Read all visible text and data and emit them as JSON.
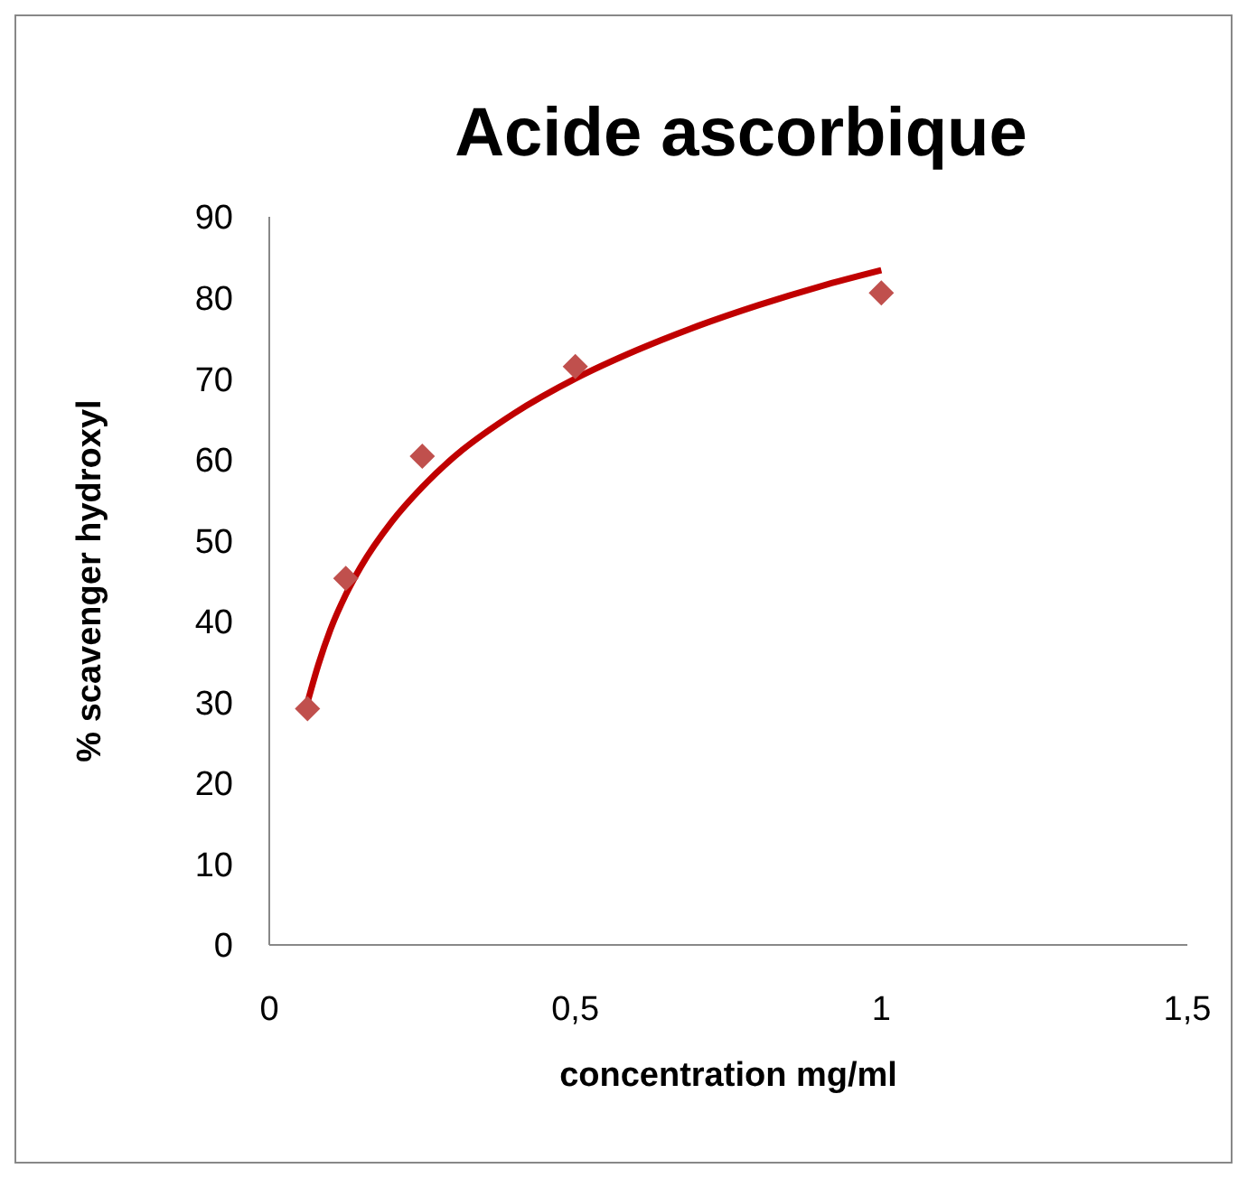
{
  "chart_data": {
    "type": "scatter",
    "title": "Acide ascorbique",
    "xlabel": "concentration mg/ml",
    "ylabel": "% scavenger hydroxyl",
    "xlim": [
      0,
      1.5
    ],
    "xticks": [
      0,
      {
        "value": 0.5,
        "label": "0,5"
      },
      1,
      {
        "value": 1.5,
        "label": "1,5"
      }
    ],
    "ylim": [
      0,
      90
    ],
    "yticks": [
      0,
      10,
      20,
      30,
      40,
      50,
      60,
      70,
      80,
      90
    ],
    "grid": false,
    "legend": false,
    "series": [
      {
        "marker": "diamond",
        "color": "#c0504d",
        "x": [
          0.0625,
          0.125,
          0.25,
          0.5,
          1
        ],
        "values": [
          29.2,
          45.3,
          60.4,
          71.5,
          80.6
        ]
      },
      {
        "type": "line",
        "marker": "none",
        "line_style": "solid",
        "color": "#c00000",
        "x": [
          0.0625,
          0.08,
          0.1,
          0.125,
          0.15,
          0.2,
          0.25,
          0.3,
          0.4,
          0.5,
          0.6,
          0.7,
          0.8,
          0.9,
          1
        ],
        "values": [
          30,
          34.6,
          39,
          43.3,
          46.8,
          52.3,
          56.6,
          60.2,
          65.7,
          70,
          73.5,
          76.5,
          79.1,
          81.4,
          83.4
        ]
      }
    ]
  }
}
